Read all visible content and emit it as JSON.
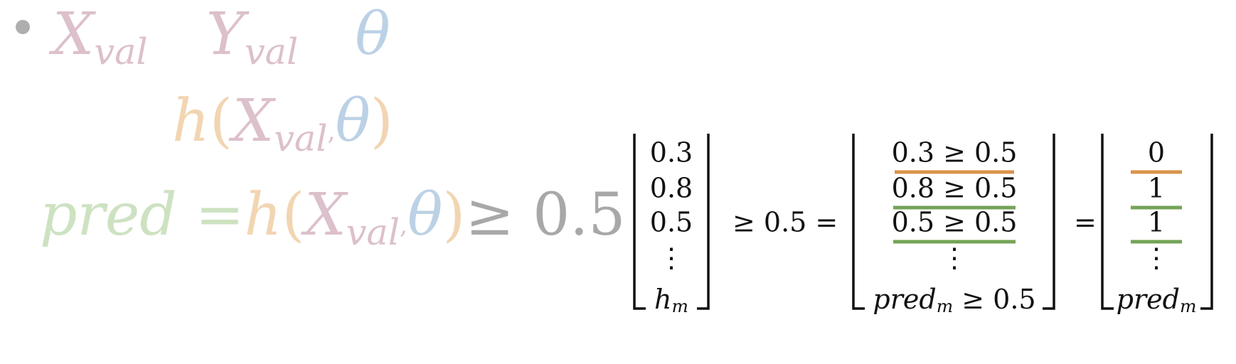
{
  "vars": {
    "x_base": "X",
    "y_base": "Y",
    "sub_val": "val",
    "theta": "θ",
    "h": "h",
    "paren_open": "(",
    "paren_close": ")",
    "comma": ",",
    "pred": "pred",
    "eq": "=",
    "ge_threshold": "≥ 0.5"
  },
  "equation": {
    "input_vector": [
      "0.3",
      "0.8",
      "0.5",
      "⋮",
      "h_m"
    ],
    "operator": "≥ 0.5 =",
    "comparisons": [
      "0.3 ≥ 0.5",
      "0.8 ≥ 0.5",
      "0.5 ≥ 0.5",
      "⋮",
      "pred_m ≥ 0.5"
    ],
    "equals": "=",
    "output_vector": [
      "0",
      "1",
      "1",
      "⋮",
      "pred_m"
    ],
    "highlight_colors": {
      "false": "#d8934a",
      "true": "#74a457"
    },
    "highlights": [
      "false",
      "true",
      "true"
    ]
  }
}
